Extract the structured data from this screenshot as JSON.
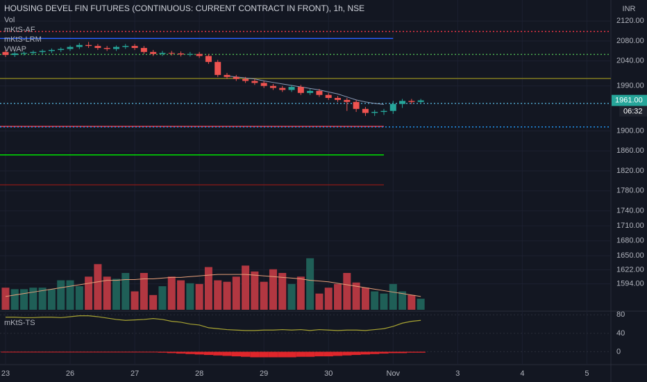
{
  "chart_data": {
    "type": "candlestick",
    "title": "HOUSING DEVEL FIN FUTURES (CONTINUOUS: CURRENT CONTRACT IN FRONT), 1h, NSE",
    "legend": [
      "Vol",
      "mKtS-AF",
      "mKtS-LRM",
      "VWAP"
    ],
    "currency": "INR",
    "up_color": "#26a69a",
    "down_color": "#ef5350",
    "xlim": [
      -0.6,
      65.6
    ],
    "xticks": [
      {
        "value": 0,
        "label": "23"
      },
      {
        "value": 7,
        "label": "26"
      },
      {
        "value": 14,
        "label": "27"
      },
      {
        "value": 21,
        "label": "28"
      },
      {
        "value": 28,
        "label": "29"
      },
      {
        "value": 35,
        "label": "30"
      },
      {
        "value": 42,
        "label": "Nov"
      },
      {
        "value": 49,
        "label": "3"
      },
      {
        "value": 56,
        "label": "4"
      },
      {
        "value": 63,
        "label": "5"
      }
    ],
    "ylim": [
      1542,
      2162
    ],
    "yticks": [
      {
        "value": 2120,
        "label": "2120.00"
      },
      {
        "value": 2080,
        "label": "2080.00"
      },
      {
        "value": 2040,
        "label": "2040.00"
      },
      {
        "value": 1990,
        "label": "1990.00"
      },
      {
        "value": 1900,
        "label": "1900.00"
      },
      {
        "value": 1860,
        "label": "1860.00"
      },
      {
        "value": 1820,
        "label": "1820.00"
      },
      {
        "value": 1780,
        "label": "1780.00"
      },
      {
        "value": 1740,
        "label": "1740.00"
      },
      {
        "value": 1710,
        "label": "1710.00"
      },
      {
        "value": 1680,
        "label": "1680.00"
      },
      {
        "value": 1650,
        "label": "1650.00"
      },
      {
        "value": 1622,
        "label": "1622.00"
      },
      {
        "value": 1594,
        "label": "1594.00"
      }
    ],
    "open": [
      2058,
      2052,
      2055,
      2056,
      2058,
      2060,
      2062,
      2064,
      2068,
      2072,
      2070,
      2066,
      2064,
      2068,
      2070,
      2066,
      2058,
      2054,
      2056,
      2055,
      2053,
      2054,
      2050,
      2038,
      2012,
      2008,
      2004,
      2000,
      1996,
      1990,
      1986,
      1982,
      1988,
      1976,
      1980,
      1972,
      1966,
      1962,
      1958,
      1944,
      1936,
      1938,
      1940,
      1954,
      1960,
      1958
    ],
    "high": [
      2062,
      2058,
      2059,
      2061,
      2063,
      2065,
      2067,
      2071,
      2076,
      2078,
      2074,
      2070,
      2071,
      2074,
      2074,
      2070,
      2062,
      2060,
      2060,
      2059,
      2058,
      2058,
      2054,
      2042,
      2016,
      2012,
      2008,
      2004,
      2000,
      1994,
      1990,
      1992,
      1992,
      1984,
      1984,
      1976,
      1970,
      1966,
      1962,
      1948,
      1942,
      1944,
      1960,
      1964,
      1964,
      1964
    ],
    "low": [
      2048,
      2048,
      2051,
      2052,
      2054,
      2056,
      2058,
      2060,
      2064,
      2066,
      2062,
      2060,
      2060,
      2064,
      2062,
      2054,
      2050,
      2050,
      2051,
      2049,
      2049,
      2046,
      2034,
      2008,
      2004,
      2000,
      1996,
      1992,
      1986,
      1982,
      1978,
      1978,
      1972,
      1972,
      1968,
      1962,
      1958,
      1940,
      1938,
      1930,
      1930,
      1932,
      1934,
      1946,
      1954,
      1954
    ],
    "close": [
      2052,
      2055,
      2056,
      2058,
      2060,
      2062,
      2064,
      2068,
      2072,
      2070,
      2066,
      2064,
      2068,
      2070,
      2066,
      2058,
      2054,
      2056,
      2055,
      2053,
      2054,
      2050,
      2038,
      2012,
      2008,
      2004,
      2000,
      1996,
      1990,
      1986,
      1982,
      1988,
      1976,
      1980,
      1972,
      1966,
      1962,
      1958,
      1944,
      1936,
      1938,
      1940,
      1954,
      1960,
      1958,
      1961
    ],
    "volume": [
      30,
      28,
      28,
      30,
      30,
      28,
      40,
      40,
      32,
      45,
      62,
      45,
      42,
      50,
      25,
      50,
      20,
      32,
      45,
      40,
      36,
      35,
      58,
      40,
      38,
      45,
      60,
      52,
      38,
      55,
      50,
      35,
      45,
      70,
      22,
      30,
      35,
      50,
      37,
      30,
      25,
      22,
      35,
      25,
      20,
      15
    ],
    "volume_lim": [
      0,
      100
    ],
    "volume_ma": [
      18,
      20,
      22,
      24,
      26,
      28,
      30,
      32,
      34,
      36,
      38,
      40,
      40,
      41,
      41,
      42,
      42,
      43,
      44,
      44,
      45,
      46,
      47,
      48,
      48,
      48,
      48,
      47,
      46,
      45,
      44,
      43,
      42,
      40,
      39,
      38,
      36,
      34,
      32,
      30,
      28,
      26,
      24,
      22,
      20,
      18
    ],
    "vwap": [
      null,
      null,
      null,
      null,
      null,
      null,
      null,
      null,
      null,
      null,
      null,
      null,
      null,
      null,
      null,
      null,
      null,
      null,
      null,
      null,
      null,
      null,
      null,
      null,
      2010,
      2008,
      2006,
      2004,
      2000,
      1997,
      1994,
      1991,
      1988,
      1985,
      1982,
      1978,
      1974,
      1968,
      1962,
      1958,
      1955,
      1953,
      null,
      null,
      null,
      null
    ],
    "levels": [
      {
        "value": 2099,
        "color": "#f23645",
        "dash": true,
        "end": 65.6
      },
      {
        "value": 2085,
        "color": "#2962ff",
        "dash": false,
        "end": 42
      },
      {
        "value": 2053,
        "color": "#4caf50",
        "dash": true,
        "end": 65.6
      },
      {
        "value": 2005,
        "color": "#807a20",
        "dash": false,
        "end": 65.6
      },
      {
        "value": 1955,
        "color": "#4fa3c7",
        "dash": true,
        "end": 65.6
      },
      {
        "value": 1909,
        "color": "#f23645",
        "dash": false,
        "end": 41
      },
      {
        "value": 1908,
        "color": "#2196f3",
        "dash": true,
        "end": 65.6
      },
      {
        "value": 1852,
        "color": "#00e600",
        "dash": false,
        "end": 41
      },
      {
        "value": 1792,
        "color": "#7a1a1a",
        "dash": false,
        "end": 41
      }
    ],
    "last_price": {
      "value": 1961,
      "label": "1961.00"
    },
    "countdown": "06:32",
    "oscillator": {
      "name": "mKtS-TS",
      "ylim": [
        -28,
        88
      ],
      "yticks": [
        80,
        40,
        0
      ],
      "line_color": "#a8a432",
      "values": [
        75,
        75,
        74,
        74,
        75,
        75,
        74,
        76,
        78,
        78,
        76,
        73,
        70,
        68,
        69,
        70,
        72,
        70,
        66,
        64,
        60,
        58,
        52,
        50,
        48,
        47,
        46,
        46,
        47,
        47,
        48,
        47,
        48,
        46,
        48,
        47,
        46,
        47,
        47,
        46,
        48,
        50,
        55,
        62,
        66,
        68
      ],
      "histogram_color": "#e0262b",
      "histogram": [
        0,
        0,
        0,
        0,
        0,
        0,
        0,
        -1,
        -1,
        -1,
        -1,
        -1,
        -1,
        -1,
        -1,
        -1,
        -1,
        -2,
        -3,
        -4,
        -5,
        -6,
        -7,
        -8,
        -9,
        -10,
        -11,
        -12,
        -12,
        -12,
        -12,
        -12,
        -11,
        -11,
        -10,
        -10,
        -9,
        -8,
        -7,
        -6,
        -5,
        -4,
        -3,
        -3,
        -2,
        -2
      ]
    }
  }
}
